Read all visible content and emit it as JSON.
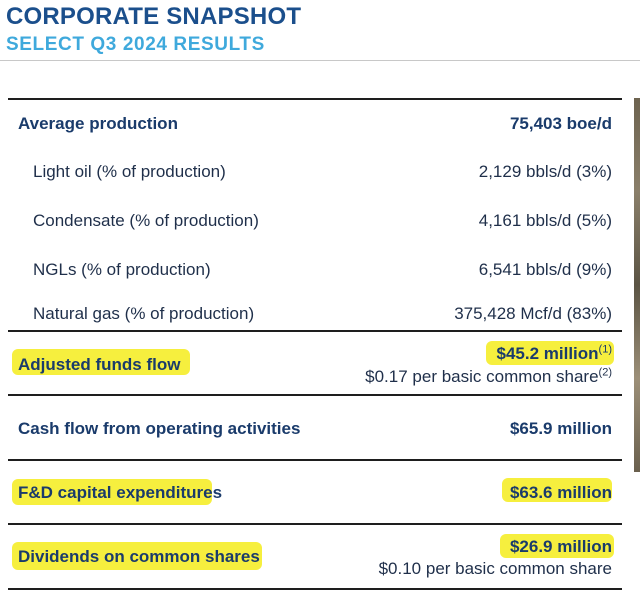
{
  "header": {
    "title": "CORPORATE SNAPSHOT",
    "subtitle": "SELECT Q3 2024 RESULTS"
  },
  "table": {
    "average_production": {
      "label": "Average production",
      "value": "75,403 boe/d"
    },
    "light_oil": {
      "label": "Light oil (% of production)",
      "value": "2,129 bbls/d (3%)"
    },
    "condensate": {
      "label": "Condensate (% of production)",
      "value": "4,161 bbls/d (5%)"
    },
    "ngls": {
      "label": "NGLs (% of production)",
      "value": "6,541 bbls/d (9%)"
    },
    "natural_gas": {
      "label": "Natural gas (% of production)",
      "value": "375,428 Mcf/d (83%)"
    },
    "adjusted_funds_flow": {
      "label": "Adjusted funds flow",
      "value": "$45.2 million",
      "value_note": "(1)",
      "per_share": "$0.17 per basic common share",
      "per_share_note": "(2)"
    },
    "cash_flow_ops": {
      "label": "Cash flow from operating activities",
      "value": "$65.9 million"
    },
    "fd_capex": {
      "label": "F&D capital expenditures",
      "value": "$63.6 million"
    },
    "dividends": {
      "label": "Dividends on common shares",
      "value": "$26.9 million",
      "per_share": "$0.10 per basic common share"
    }
  },
  "colors": {
    "title": "#1b4f8c",
    "subtitle": "#3fa9dc",
    "highlight": "#f5ec1c",
    "text": "#1a3b6b"
  }
}
